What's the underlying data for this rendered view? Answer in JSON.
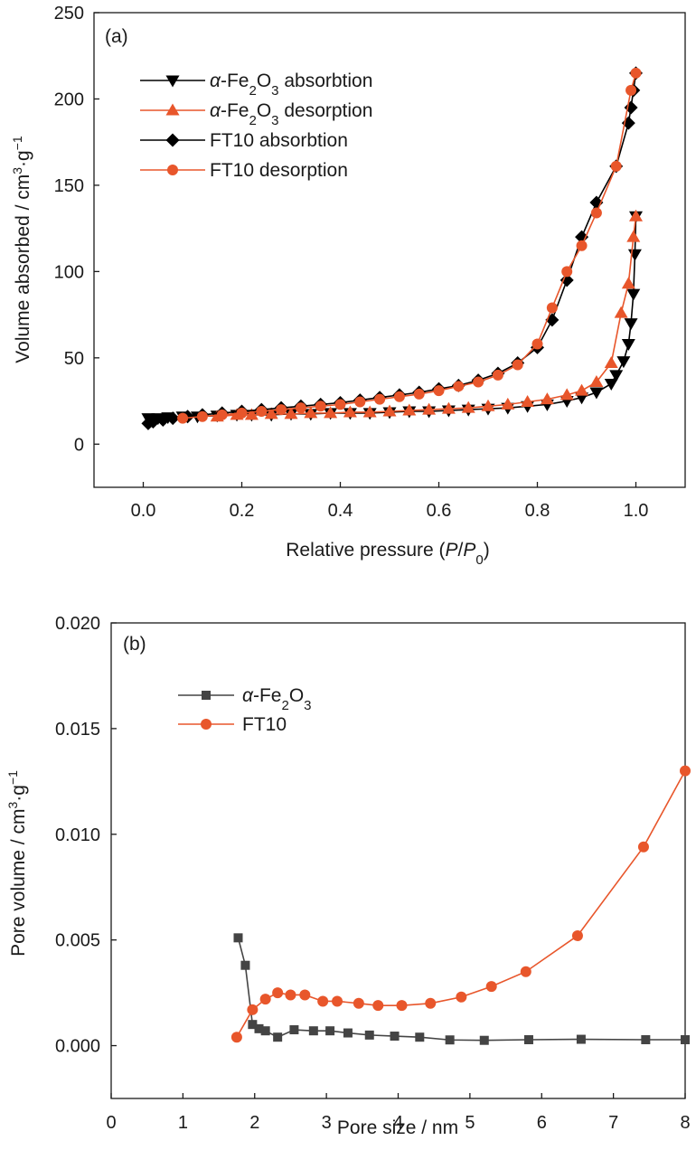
{
  "chart_data": [
    {
      "type": "line",
      "panel_label": "(a)",
      "xlabel_parts": [
        "Relative pressure (",
        "P",
        "/",
        "P",
        "0",
        ")"
      ],
      "ylabel_parts": [
        "Volume absorbed / cm",
        "3",
        "·g",
        "−1"
      ],
      "xlim": [
        -0.1,
        1.1
      ],
      "ylim": [
        -25,
        250
      ],
      "xticks": [
        0.0,
        0.2,
        0.4,
        0.6,
        0.8,
        1.0
      ],
      "xtick_labels": [
        "0.0",
        "0.2",
        "0.4",
        "0.6",
        "0.8",
        "1.0"
      ],
      "yticks": [
        0,
        50,
        100,
        150,
        200,
        250
      ],
      "ytick_labels": [
        "0",
        "50",
        "100",
        "150",
        "200",
        "250"
      ],
      "grid": false,
      "legend_position": "top-left",
      "series": [
        {
          "name_parts": [
            "α",
            "-Fe",
            "2",
            "O",
            "3",
            " absorbtion"
          ],
          "color": "#000000",
          "marker": "triangle-down",
          "x": [
            0.01,
            0.03,
            0.05,
            0.08,
            0.11,
            0.15,
            0.19,
            0.22,
            0.26,
            0.3,
            0.34,
            0.38,
            0.42,
            0.46,
            0.5,
            0.54,
            0.58,
            0.62,
            0.66,
            0.7,
            0.74,
            0.78,
            0.82,
            0.86,
            0.89,
            0.92,
            0.95,
            0.96,
            0.975,
            0.985,
            0.99,
            0.995,
            0.998,
            1.0
          ],
          "y": [
            15,
            15,
            15.5,
            16,
            16,
            16.5,
            17,
            17,
            17,
            17.5,
            17.5,
            18,
            18,
            18,
            18.5,
            19,
            19,
            19.5,
            20,
            20.5,
            21,
            22,
            23,
            25,
            27,
            30,
            35,
            40,
            48,
            58,
            70,
            87,
            110,
            132
          ]
        },
        {
          "name_parts": [
            "α",
            "-Fe",
            "2",
            "O",
            "3",
            " desorption"
          ],
          "color": "#e8562b",
          "marker": "triangle-up",
          "x": [
            0.15,
            0.19,
            0.22,
            0.26,
            0.3,
            0.34,
            0.38,
            0.42,
            0.46,
            0.5,
            0.54,
            0.58,
            0.62,
            0.66,
            0.7,
            0.74,
            0.78,
            0.82,
            0.86,
            0.89,
            0.92,
            0.95,
            0.97,
            0.985,
            0.995,
            1.0
          ],
          "y": [
            16,
            17,
            17,
            17.5,
            17.5,
            18,
            18,
            18.5,
            18.5,
            19,
            19.5,
            20,
            20.5,
            21,
            22,
            23,
            24.5,
            26,
            28.5,
            31,
            36,
            47,
            76,
            93,
            120,
            132
          ]
        },
        {
          "name_parts": [
            "FT10 absorbtion"
          ],
          "color": "#000000",
          "marker": "diamond",
          "x": [
            0.01,
            0.02,
            0.04,
            0.06,
            0.09,
            0.12,
            0.16,
            0.2,
            0.24,
            0.28,
            0.32,
            0.36,
            0.4,
            0.44,
            0.48,
            0.52,
            0.56,
            0.6,
            0.64,
            0.68,
            0.72,
            0.76,
            0.8,
            0.83,
            0.86,
            0.89,
            0.92,
            0.96,
            0.985,
            0.99,
            0.995,
            1.0
          ],
          "y": [
            12,
            13,
            14,
            15,
            16,
            17,
            18,
            19,
            20,
            21,
            22,
            23,
            24,
            25.5,
            27,
            28.5,
            30,
            32,
            34,
            37,
            41,
            47,
            56,
            72,
            95,
            120,
            140,
            161,
            186,
            195,
            205,
            215
          ]
        },
        {
          "name_parts": [
            "FT10 desorption"
          ],
          "color": "#e8562b",
          "marker": "circle",
          "x": [
            0.08,
            0.12,
            0.16,
            0.2,
            0.24,
            0.28,
            0.32,
            0.36,
            0.4,
            0.44,
            0.48,
            0.52,
            0.56,
            0.6,
            0.64,
            0.68,
            0.72,
            0.76,
            0.8,
            0.83,
            0.86,
            0.89,
            0.92,
            0.96,
            0.99,
            1.0
          ],
          "y": [
            15,
            16,
            17,
            18,
            19,
            20,
            21,
            22,
            23,
            24.5,
            26,
            27.5,
            29,
            31,
            33.5,
            36,
            40,
            46,
            58,
            79,
            100,
            115,
            134,
            161,
            205,
            215
          ]
        }
      ]
    },
    {
      "type": "line",
      "panel_label": "(b)",
      "xlabel_parts": [
        "Pore size / nm"
      ],
      "ylabel_parts": [
        "Pore volume / cm",
        "3",
        "·g",
        "−1"
      ],
      "xlim": [
        0,
        8
      ],
      "ylim": [
        -0.0025,
        0.02
      ],
      "xticks": [
        0,
        1,
        2,
        3,
        4,
        5,
        6,
        7,
        8
      ],
      "xtick_labels": [
        "0",
        "1",
        "2",
        "3",
        "4",
        "5",
        "6",
        "7",
        "8"
      ],
      "yticks": [
        0.0,
        0.005,
        0.01,
        0.015,
        0.02
      ],
      "ytick_labels": [
        "0.000",
        "0.005",
        "0.010",
        "0.015",
        "0.020"
      ],
      "grid": false,
      "legend_position": "top-left",
      "series": [
        {
          "name_parts": [
            "α",
            "-Fe",
            "2",
            "O",
            "3"
          ],
          "color": "#444444",
          "marker": "square",
          "x": [
            1.77,
            1.87,
            1.97,
            2.06,
            2.15,
            2.32,
            2.55,
            2.82,
            3.05,
            3.3,
            3.6,
            3.95,
            4.3,
            4.72,
            5.2,
            5.82,
            6.55,
            7.45,
            8.0
          ],
          "y": [
            0.0051,
            0.0038,
            0.001,
            0.0008,
            0.0007,
            0.0004,
            0.00075,
            0.0007,
            0.0007,
            0.0006,
            0.0005,
            0.00045,
            0.0004,
            0.00027,
            0.00025,
            0.00028,
            0.0003,
            0.00028,
            0.00028
          ]
        },
        {
          "name_parts": [
            "FT10"
          ],
          "color": "#e8562b",
          "marker": "circle",
          "x": [
            1.75,
            1.97,
            2.15,
            2.32,
            2.5,
            2.7,
            2.95,
            3.15,
            3.45,
            3.72,
            4.05,
            4.45,
            4.88,
            5.3,
            5.78,
            6.5,
            7.42,
            8.0
          ],
          "y": [
            0.0004,
            0.0017,
            0.0022,
            0.0025,
            0.0024,
            0.0024,
            0.0021,
            0.0021,
            0.002,
            0.0019,
            0.0019,
            0.002,
            0.0023,
            0.0028,
            0.0035,
            0.0052,
            0.0094,
            0.013
          ]
        }
      ]
    }
  ]
}
